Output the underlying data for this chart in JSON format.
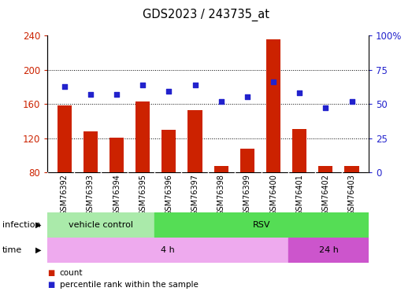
{
  "title": "GDS2023 / 243735_at",
  "samples": [
    "GSM76392",
    "GSM76393",
    "GSM76394",
    "GSM76395",
    "GSM76396",
    "GSM76397",
    "GSM76398",
    "GSM76399",
    "GSM76400",
    "GSM76401",
    "GSM76402",
    "GSM76403"
  ],
  "counts": [
    158,
    128,
    121,
    163,
    130,
    153,
    88,
    108,
    235,
    131,
    88,
    88
  ],
  "percentile_ranks": [
    63,
    57,
    57,
    64,
    59,
    64,
    52,
    55,
    66,
    58,
    47,
    52
  ],
  "ylim_left": [
    80,
    240
  ],
  "ylim_right": [
    0,
    100
  ],
  "yticks_left": [
    80,
    120,
    160,
    200,
    240
  ],
  "yticks_right": [
    0,
    25,
    50,
    75,
    100
  ],
  "ytick_labels_right": [
    "0",
    "25",
    "50",
    "75",
    "100%"
  ],
  "bar_color": "#cc2200",
  "dot_color": "#2222cc",
  "infection_groups": [
    {
      "label": "vehicle control",
      "start": 0,
      "end": 4,
      "color": "#aaeaaa"
    },
    {
      "label": "RSV",
      "start": 4,
      "end": 12,
      "color": "#55dd55"
    }
  ],
  "time_groups": [
    {
      "label": "4 h",
      "start": 0,
      "end": 9,
      "color": "#eeaaee"
    },
    {
      "label": "24 h",
      "start": 9,
      "end": 12,
      "color": "#cc55cc"
    }
  ],
  "infection_label": "infection",
  "time_label": "time",
  "legend_count_label": "count",
  "legend_pct_label": "percentile rank within the sample",
  "tick_label_color_left": "#cc2200",
  "tick_label_color_right": "#2222cc",
  "row_label_bg": "#cccccc",
  "grid_dotted_vals": [
    120,
    160,
    200
  ]
}
